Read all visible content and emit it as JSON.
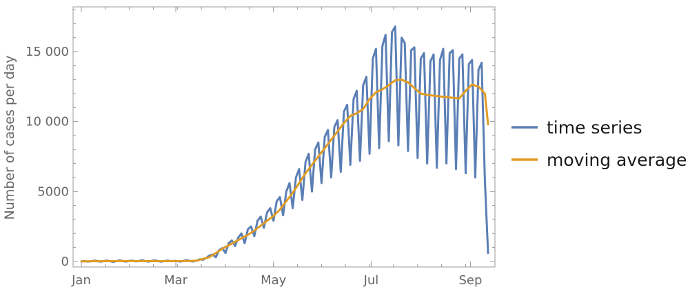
{
  "chart_data": {
    "type": "line",
    "title": "",
    "xlabel": "",
    "ylabel": "Number of cases per day",
    "x_unit": "day of year",
    "xlim": [
      0,
      254
    ],
    "ylim": [
      -400,
      18200
    ],
    "x_ticks": [
      {
        "value": 0,
        "label": "Jan"
      },
      {
        "value": 59,
        "label": "Mar"
      },
      {
        "value": 120,
        "label": "May"
      },
      {
        "value": 181,
        "label": "Jul"
      },
      {
        "value": 243,
        "label": "Sep"
      }
    ],
    "y_ticks": [
      {
        "value": 0,
        "label": "0"
      },
      {
        "value": 5000,
        "label": "5000"
      },
      {
        "value": 10000,
        "label": "10 000"
      },
      {
        "value": 15000,
        "label": "15 000"
      }
    ],
    "grid": false,
    "legend_position": "right",
    "series": [
      {
        "name": "time series",
        "color": "#5b7fb5",
        "x_start": 0,
        "values": [
          0,
          0,
          0,
          0,
          0,
          0,
          0,
          0,
          0,
          0,
          0,
          0,
          0,
          0,
          0,
          0,
          0,
          0,
          0,
          0,
          0,
          0,
          0,
          0,
          0,
          0,
          0,
          0,
          0,
          0,
          0,
          0,
          0,
          0,
          0,
          0,
          0,
          0,
          0,
          0,
          0,
          0,
          0,
          0,
          0,
          0,
          0,
          0,
          0,
          0,
          0,
          0,
          0,
          0,
          0,
          0,
          0,
          0,
          0,
          0,
          0,
          0,
          0,
          0,
          0,
          0,
          0,
          0,
          0,
          0,
          0,
          0,
          0,
          0,
          0,
          150,
          250,
          350,
          450,
          500,
          550,
          400,
          600,
          800,
          1000,
          1200,
          1400,
          1000,
          800,
          1300,
          1500,
          1600,
          1400,
          1000,
          800,
          1800,
          2000,
          1900,
          2100,
          1500,
          1300,
          2300,
          2500,
          2600,
          2400,
          1800,
          1500,
          2800,
          3000,
          3100,
          3200,
          2500,
          2100,
          3400,
          3600,
          3800,
          4000,
          3000,
          2700,
          4500,
          5000,
          5300,
          5500,
          4000,
          3500,
          5800,
          6200,
          6500,
          6800,
          5000,
          4000,
          7000,
          7500,
          7800,
          8000,
          5500,
          4200,
          8200,
          8700,
          9000,
          9200,
          6000,
          4500,
          9500,
          9800,
          10200,
          10500,
          6500,
          4800,
          11000,
          11500,
          11800,
          12000,
          7000,
          5000,
          12500,
          13000,
          13500,
          14000,
          7500,
          5200,
          14500,
          15000,
          15200,
          15500,
          8000,
          5200,
          15500,
          16000,
          16300,
          16500,
          8500,
          5200,
          16000,
          16300,
          16100,
          15700,
          8000,
          5000,
          14800,
          15200,
          15500,
          15000,
          7500,
          4600,
          14000,
          14700,
          15000,
          14400,
          7000,
          4300,
          14200,
          15000,
          14700,
          13900,
          6800,
          4100,
          14000,
          15300,
          15700,
          14800,
          7200,
          4300,
          14700,
          15300,
          15000,
          14300,
          6800,
          4000,
          14600,
          15000,
          14200,
          13500,
          6500,
          3800,
          14000,
          14600,
          14000,
          13300,
          6300,
          3700,
          13600,
          14200,
          13600,
          12600,
          6000,
          3600,
          13000,
          13800,
          12900,
          12400,
          5800,
          3500,
          600
        ],
        "points": [
          [
            0,
            0
          ],
          [
            2,
            20
          ],
          [
            4,
            -10
          ],
          [
            6,
            10
          ],
          [
            8,
            50
          ],
          [
            10,
            30
          ],
          [
            12,
            -20
          ],
          [
            14,
            20
          ],
          [
            16,
            60
          ],
          [
            18,
            10
          ],
          [
            20,
            -30
          ],
          [
            22,
            30
          ],
          [
            24,
            70
          ],
          [
            26,
            20
          ],
          [
            28,
            -10
          ],
          [
            30,
            40
          ],
          [
            32,
            60
          ],
          [
            34,
            0
          ],
          [
            36,
            30
          ],
          [
            38,
            80
          ],
          [
            40,
            20
          ],
          [
            42,
            -10
          ],
          [
            44,
            40
          ],
          [
            46,
            70
          ],
          [
            48,
            20
          ],
          [
            50,
            -20
          ],
          [
            52,
            30
          ],
          [
            54,
            60
          ],
          [
            56,
            10
          ],
          [
            58,
            40
          ],
          [
            60,
            20
          ],
          [
            62,
            -10
          ],
          [
            64,
            50
          ],
          [
            66,
            80
          ],
          [
            68,
            20
          ],
          [
            70,
            0
          ],
          [
            72,
            60
          ],
          [
            74,
            150
          ],
          [
            76,
            120
          ],
          [
            78,
            250
          ],
          [
            80,
            420
          ],
          [
            82,
            480
          ],
          [
            84,
            300
          ],
          [
            86,
            800
          ],
          [
            88,
            950
          ],
          [
            90,
            600
          ],
          [
            92,
            1300
          ],
          [
            94,
            1500
          ],
          [
            96,
            1100
          ],
          [
            98,
            1700
          ],
          [
            100,
            2000
          ],
          [
            102,
            1300
          ],
          [
            104,
            2300
          ],
          [
            106,
            2500
          ],
          [
            108,
            1800
          ],
          [
            110,
            2900
          ],
          [
            112,
            3200
          ],
          [
            114,
            2400
          ],
          [
            116,
            3500
          ],
          [
            118,
            3800
          ],
          [
            120,
            2900
          ],
          [
            122,
            4300
          ],
          [
            124,
            4600
          ],
          [
            126,
            3300
          ],
          [
            128,
            5000
          ],
          [
            130,
            5600
          ],
          [
            132,
            3800
          ],
          [
            134,
            6000
          ],
          [
            136,
            6600
          ],
          [
            138,
            4400
          ],
          [
            140,
            7100
          ],
          [
            142,
            7700
          ],
          [
            144,
            5000
          ],
          [
            146,
            8000
          ],
          [
            148,
            8500
          ],
          [
            150,
            5600
          ],
          [
            152,
            8900
          ],
          [
            154,
            9400
          ],
          [
            156,
            6000
          ],
          [
            158,
            9600
          ],
          [
            160,
            10100
          ],
          [
            162,
            6400
          ],
          [
            164,
            10700
          ],
          [
            166,
            11200
          ],
          [
            168,
            6900
          ],
          [
            170,
            11600
          ],
          [
            172,
            12200
          ],
          [
            174,
            7200
          ],
          [
            176,
            12600
          ],
          [
            178,
            13200
          ],
          [
            180,
            7700
          ],
          [
            182,
            14500
          ],
          [
            184,
            15200
          ],
          [
            186,
            8100
          ],
          [
            188,
            15400
          ],
          [
            190,
            16200
          ],
          [
            192,
            8600
          ],
          [
            194,
            16400
          ],
          [
            196,
            16800
          ],
          [
            198,
            8300
          ],
          [
            200,
            16000
          ],
          [
            202,
            15600
          ],
          [
            204,
            7900
          ],
          [
            206,
            15100
          ],
          [
            208,
            15300
          ],
          [
            210,
            7400
          ],
          [
            212,
            14500
          ],
          [
            214,
            14900
          ],
          [
            216,
            7000
          ],
          [
            218,
            14300
          ],
          [
            220,
            14800
          ],
          [
            222,
            6700
          ],
          [
            224,
            14400
          ],
          [
            226,
            15200
          ],
          [
            228,
            7000
          ],
          [
            230,
            14900
          ],
          [
            232,
            15100
          ],
          [
            234,
            6600
          ],
          [
            236,
            14500
          ],
          [
            238,
            14800
          ],
          [
            240,
            6300
          ],
          [
            242,
            14100
          ],
          [
            244,
            14400
          ],
          [
            246,
            6000
          ],
          [
            248,
            13700
          ],
          [
            250,
            14200
          ],
          [
            252,
            5800
          ],
          [
            254,
            600
          ]
        ]
      },
      {
        "name": "moving average",
        "color": "#e19c24",
        "points": [
          [
            0,
            0
          ],
          [
            4,
            10
          ],
          [
            8,
            20
          ],
          [
            12,
            15
          ],
          [
            16,
            25
          ],
          [
            20,
            20
          ],
          [
            24,
            30
          ],
          [
            28,
            20
          ],
          [
            32,
            25
          ],
          [
            36,
            20
          ],
          [
            40,
            25
          ],
          [
            44,
            20
          ],
          [
            48,
            15
          ],
          [
            52,
            20
          ],
          [
            56,
            20
          ],
          [
            60,
            25
          ],
          [
            64,
            25
          ],
          [
            68,
            30
          ],
          [
            72,
            50
          ],
          [
            76,
            180
          ],
          [
            80,
            300
          ],
          [
            84,
            600
          ],
          [
            88,
            900
          ],
          [
            92,
            1150
          ],
          [
            96,
            1400
          ],
          [
            100,
            1650
          ],
          [
            104,
            1900
          ],
          [
            108,
            2200
          ],
          [
            112,
            2550
          ],
          [
            116,
            2900
          ],
          [
            120,
            3250
          ],
          [
            124,
            3700
          ],
          [
            128,
            4300
          ],
          [
            132,
            4900
          ],
          [
            136,
            5600
          ],
          [
            140,
            6300
          ],
          [
            144,
            6900
          ],
          [
            148,
            7500
          ],
          [
            152,
            8100
          ],
          [
            156,
            8700
          ],
          [
            160,
            9300
          ],
          [
            164,
            9900
          ],
          [
            168,
            10400
          ],
          [
            172,
            10600
          ],
          [
            176,
            10900
          ],
          [
            180,
            11600
          ],
          [
            184,
            12100
          ],
          [
            188,
            12300
          ],
          [
            192,
            12600
          ],
          [
            196,
            12950
          ],
          [
            200,
            13000
          ],
          [
            204,
            12800
          ],
          [
            208,
            12400
          ],
          [
            212,
            12000
          ],
          [
            216,
            11900
          ],
          [
            220,
            11850
          ],
          [
            224,
            11800
          ],
          [
            228,
            11750
          ],
          [
            232,
            11700
          ],
          [
            236,
            11650
          ],
          [
            240,
            12200
          ],
          [
            244,
            12650
          ],
          [
            248,
            12500
          ],
          [
            252,
            12000
          ],
          [
            254,
            9800
          ]
        ]
      }
    ]
  }
}
